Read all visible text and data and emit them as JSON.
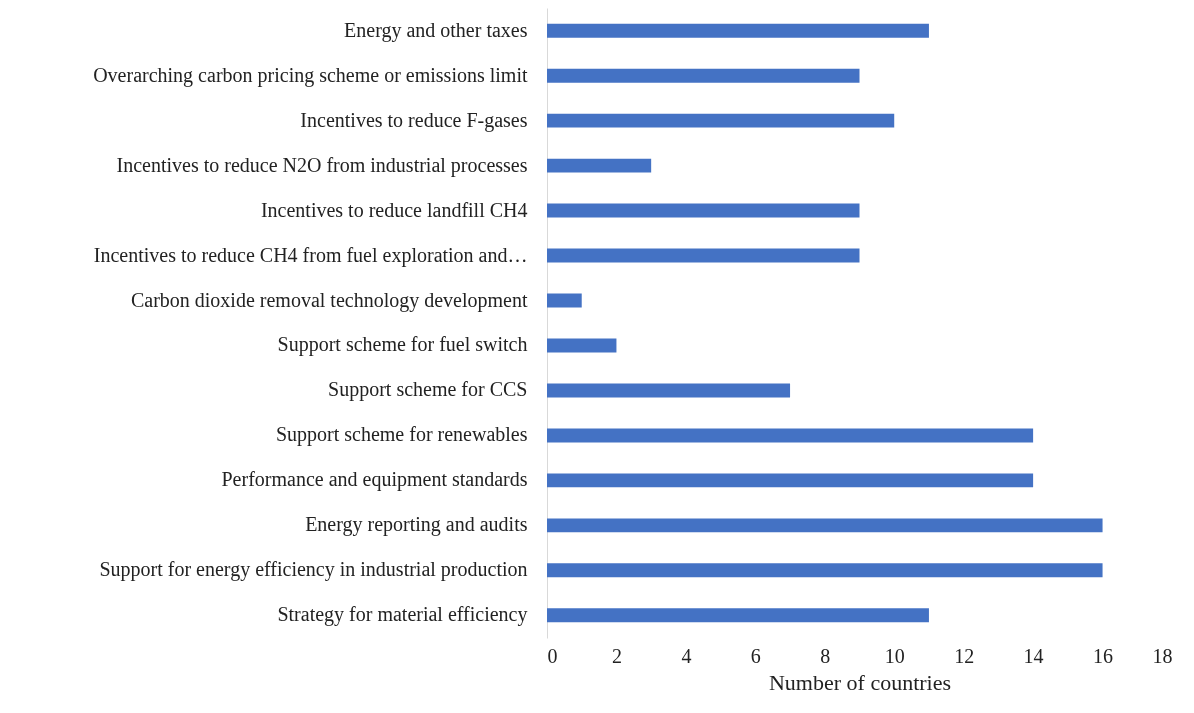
{
  "chart_data": {
    "type": "bar",
    "orientation": "horizontal",
    "xlabel": "Number of countries",
    "categories": [
      "Energy and other taxes",
      "Overarching carbon pricing scheme or emissions limit",
      "Incentives to reduce F-gases",
      "Incentives to reduce N2O from industrial processes",
      "Incentives to reduce landfill CH4",
      "Incentives to reduce CH4 from fuel exploration and…",
      "Carbon dioxide removal technology development",
      "Support scheme for fuel switch",
      "Support scheme for CCS",
      "Support scheme for renewables",
      "Performance and equipment standards",
      "Energy reporting and audits",
      "Support for energy efficiency in industrial production",
      "Strategy for material efficiency"
    ],
    "values": [
      11,
      9,
      10,
      3,
      9,
      9,
      1,
      2,
      7,
      14,
      14,
      16,
      16,
      11
    ],
    "color": "#4472c4",
    "xlim": [
      0,
      18
    ],
    "xticks": [
      0,
      2,
      4,
      6,
      8,
      10,
      12,
      14,
      16,
      18
    ],
    "grid": false
  }
}
